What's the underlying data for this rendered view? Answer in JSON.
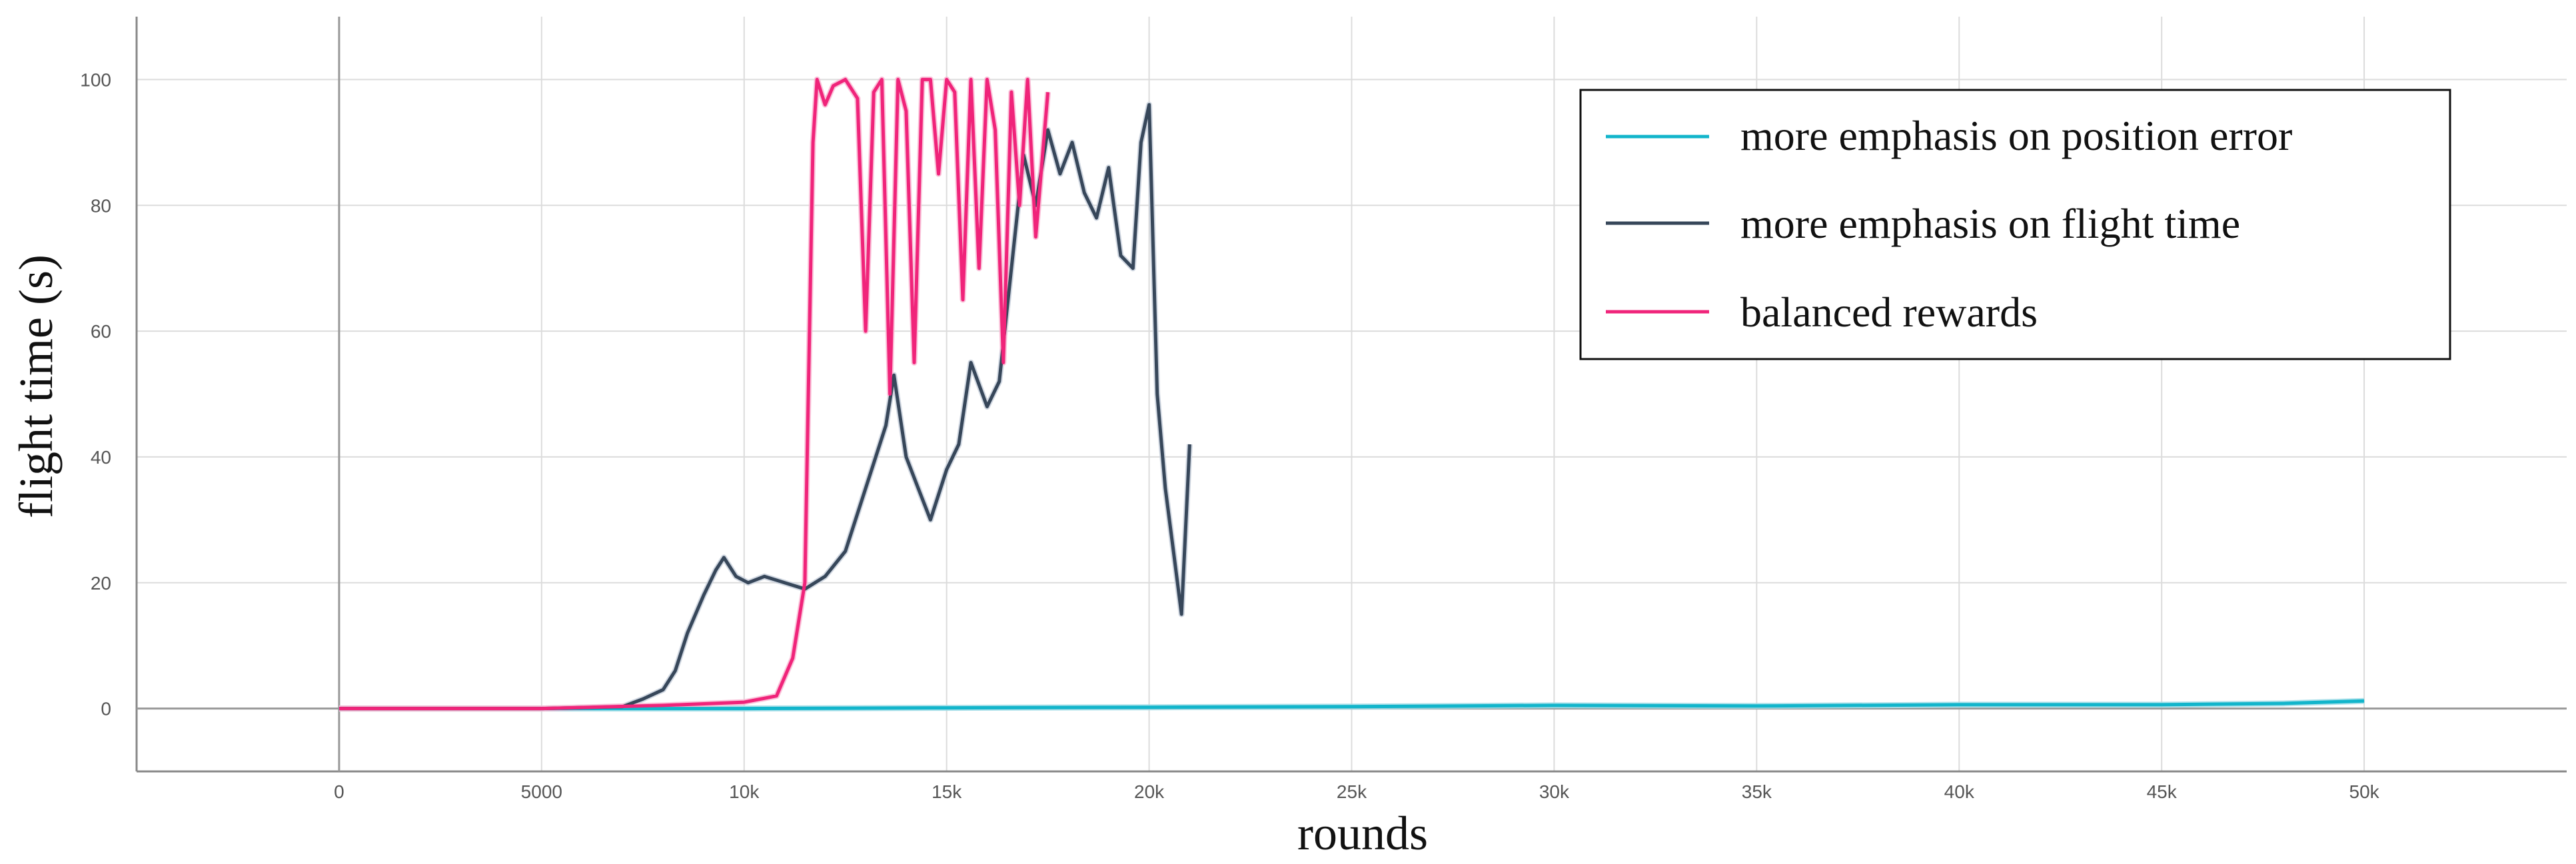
{
  "chart_data": {
    "type": "line",
    "title": "",
    "xlabel": "rounds",
    "ylabel": "flight time (s)",
    "xlim": [
      -5000,
      55000
    ],
    "ylim": [
      -10,
      110
    ],
    "x_ticks": [
      0,
      5000,
      10000,
      15000,
      20000,
      25000,
      30000,
      35000,
      40000,
      45000,
      50000
    ],
    "x_tick_labels": [
      "0",
      "5000",
      "10k",
      "15k",
      "20k",
      "25k",
      "30k",
      "35k",
      "40k",
      "45k",
      "50k"
    ],
    "y_ticks": [
      0,
      20,
      40,
      60,
      80,
      100
    ],
    "y_tick_labels": [
      "0",
      "20",
      "40",
      "60",
      "80",
      "100"
    ],
    "grid": true,
    "legend_position": "top-right",
    "series": [
      {
        "name": "more emphasis on position error",
        "color": "#12b5cb",
        "raw_color": "#9fdce6",
        "x": [
          0,
          5000,
          10000,
          15000,
          20000,
          25000,
          30000,
          35000,
          40000,
          45000,
          48000,
          50000
        ],
        "values": [
          0,
          0,
          0,
          0.1,
          0.2,
          0.3,
          0.5,
          0.4,
          0.6,
          0.6,
          0.8,
          1.2
        ]
      },
      {
        "name": "more emphasis on flight time",
        "color": "#37475a",
        "raw_color": "#c8d0dc",
        "x": [
          0,
          5000,
          7000,
          7500,
          8000,
          8300,
          8600,
          9000,
          9300,
          9500,
          9800,
          10100,
          10500,
          11000,
          11500,
          12000,
          12500,
          13000,
          13500,
          13700,
          14000,
          14300,
          14600,
          15000,
          15300,
          15600,
          16000,
          16300,
          16600,
          16900,
          17200,
          17500,
          17800,
          18100,
          18400,
          18700,
          19000,
          19300,
          19600,
          19800,
          20000,
          20200,
          20400,
          20600,
          20800,
          21000
        ],
        "values": [
          0,
          0,
          0.3,
          1.5,
          3,
          6,
          12,
          18,
          22,
          24,
          21,
          20,
          21,
          20,
          19,
          21,
          25,
          35,
          45,
          53,
          40,
          35,
          30,
          38,
          42,
          55,
          48,
          52,
          70,
          88,
          80,
          92,
          85,
          90,
          82,
          78,
          86,
          72,
          70,
          90,
          96,
          50,
          35,
          25,
          15,
          42
        ]
      },
      {
        "name": "balanced rewards",
        "color": "#f0247a",
        "raw_color": "#f9b8d4",
        "x": [
          0,
          5000,
          8000,
          10000,
          10800,
          11200,
          11500,
          11700,
          11800,
          12000,
          12200,
          12500,
          12800,
          13000,
          13200,
          13400,
          13600,
          13800,
          14000,
          14200,
          14400,
          14600,
          14800,
          15000,
          15200,
          15400,
          15600,
          15800,
          16000,
          16200,
          16400,
          16600,
          16800,
          17000,
          17200,
          17500
        ],
        "values": [
          0,
          0,
          0.5,
          1,
          2,
          8,
          20,
          90,
          100,
          96,
          99,
          100,
          97,
          60,
          98,
          100,
          50,
          100,
          95,
          55,
          100,
          100,
          85,
          100,
          98,
          65,
          100,
          70,
          100,
          92,
          55,
          98,
          80,
          100,
          75,
          98
        ]
      }
    ]
  }
}
